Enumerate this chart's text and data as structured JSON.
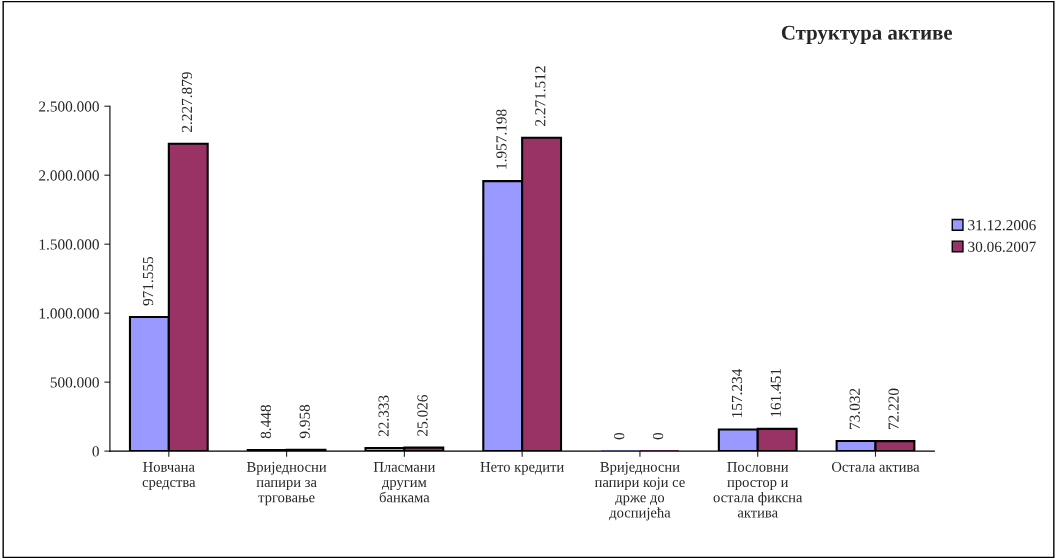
{
  "chart_data": {
    "type": "bar",
    "title": "Структура активе",
    "categories": [
      "Новчана\nсредства",
      "Вриједносни\nпапири за\nтрговање",
      "Пласмани\nдругим\nбанкама",
      "Нето кредити",
      "Вриједносни\nпапири који се\nдрже до\nдоспијећа",
      "Пословни\nпростор и\nостала фиксна\nактива",
      "Остала актива"
    ],
    "series": [
      {
        "name": "31.12.2006",
        "color": "#9999ff",
        "values": [
          971555,
          8448,
          22333,
          1957198,
          0,
          157234,
          73032
        ],
        "value_labels": [
          "971.555",
          "8.448",
          "22.333",
          "1.957.198",
          "0",
          "157.234",
          "73.032"
        ]
      },
      {
        "name": "30.06.2007",
        "color": "#993366",
        "values": [
          2227879,
          9958,
          25026,
          2271512,
          0,
          161451,
          72220
        ],
        "value_labels": [
          "2.227.879",
          "9.958",
          "25.026",
          "2.271.512",
          "0",
          "161.451",
          "72.220"
        ]
      }
    ],
    "ylim": [
      0,
      2500000
    ],
    "yticks": [
      {
        "value": 0,
        "label": "0"
      },
      {
        "value": 500000,
        "label": "500.000"
      },
      {
        "value": 1000000,
        "label": "1.000.000"
      },
      {
        "value": 1500000,
        "label": "1.500.000"
      },
      {
        "value": 2000000,
        "label": "2.000.000"
      },
      {
        "value": 2500000,
        "label": "2.500.000"
      }
    ],
    "grid": false,
    "legend": "right"
  }
}
